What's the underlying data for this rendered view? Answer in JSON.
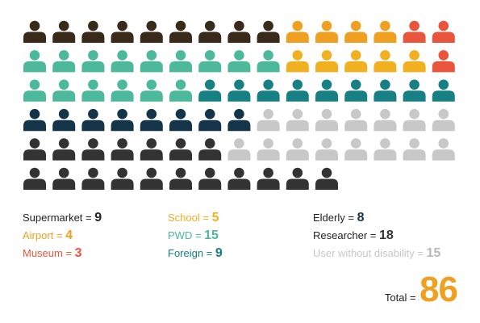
{
  "chart_data": {
    "type": "pictogram",
    "categories": [
      {
        "id": "supermarket",
        "label": "Supermarket",
        "value": 9,
        "color": "#3a2a1a"
      },
      {
        "id": "airport",
        "label": "Airport",
        "value": 4,
        "color": "#f0a020"
      },
      {
        "id": "museum",
        "label": "Museum",
        "value": 3,
        "color": "#e8553c"
      },
      {
        "id": "school",
        "label": "School",
        "value": 5,
        "color": "#f0b020"
      },
      {
        "id": "pwd",
        "label": "PWD",
        "value": 15,
        "color": "#4cb89c"
      },
      {
        "id": "foreign",
        "label": "Foreign",
        "value": 9,
        "color": "#178085"
      },
      {
        "id": "elderly",
        "label": "Elderly",
        "value": 8,
        "color": "#14344a"
      },
      {
        "id": "researcher",
        "label": "Researcher",
        "value": 18,
        "color": "#333333"
      },
      {
        "id": "user-without-disability",
        "label": "User without disability",
        "value": 15,
        "color": "#c8c8c8"
      }
    ],
    "grid_rows": [
      [
        "supermarket",
        "airport",
        "museum"
      ],
      [
        "pwd",
        "school",
        "museum"
      ],
      [
        "pwd",
        "foreign"
      ],
      [
        "elderly",
        "user-without-disability"
      ],
      [
        "researcher",
        "user-without-disability"
      ],
      [
        "researcher"
      ]
    ],
    "row_counts": [
      [
        9,
        4,
        2
      ],
      [
        9,
        5,
        1
      ],
      [
        6,
        9
      ],
      [
        8,
        7
      ],
      [
        7,
        8
      ],
      [
        11
      ]
    ],
    "total_label": "Total =",
    "total_value": 86,
    "total_color": "#f0a020"
  }
}
